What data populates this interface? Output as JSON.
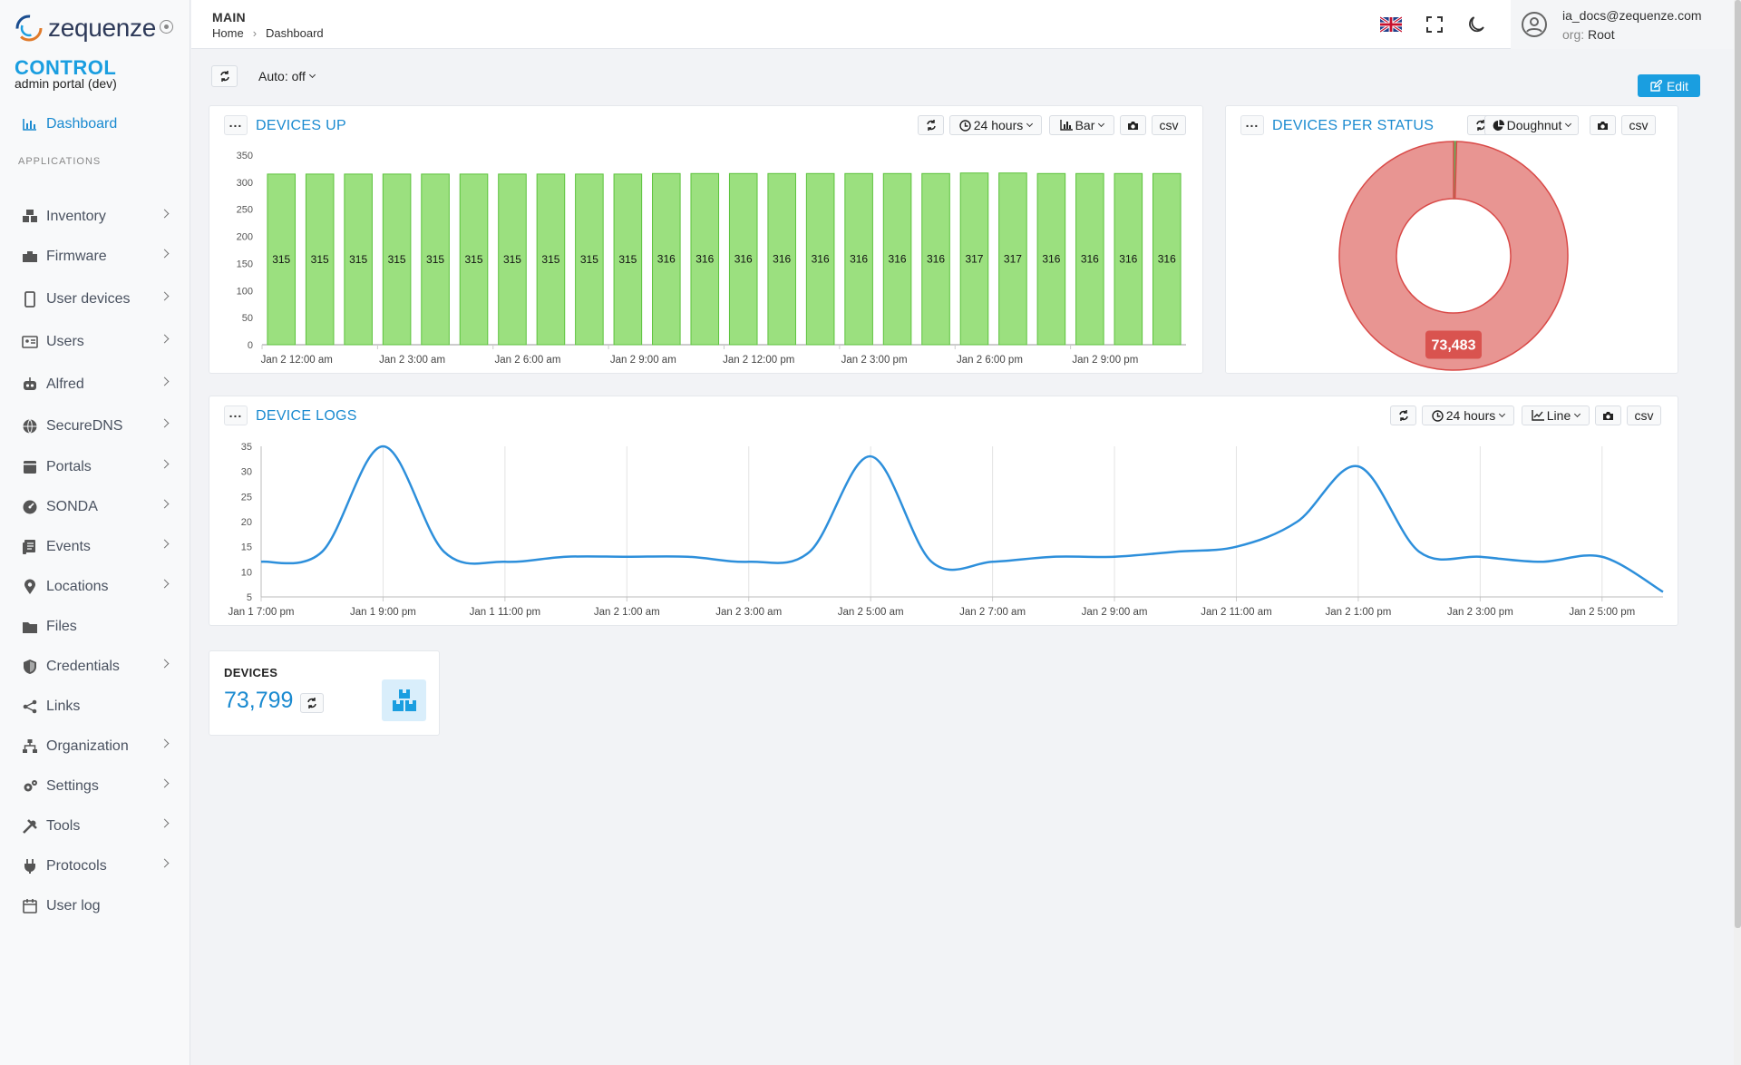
{
  "app": {
    "logo_text": "zequenze",
    "brand_title": "CONTROL",
    "brand_subtitle": "admin portal (dev)"
  },
  "sidebar": {
    "dashboard": "Dashboard",
    "section_label": "APPLICATIONS",
    "items": [
      {
        "label": "Inventory",
        "icon": "boxes-icon",
        "chevron": true
      },
      {
        "label": "Firmware",
        "icon": "toolbox-icon",
        "chevron": true
      },
      {
        "label": "User devices",
        "icon": "mobile-icon",
        "chevron": true
      },
      {
        "label": "Users",
        "icon": "id-card-icon",
        "chevron": true
      },
      {
        "label": "Alfred",
        "icon": "robot-icon",
        "chevron": true
      },
      {
        "label": "SecureDNS",
        "icon": "globe-icon",
        "chevron": true
      },
      {
        "label": "Portals",
        "icon": "portal-icon",
        "chevron": true
      },
      {
        "label": "SONDA",
        "icon": "gauge-icon",
        "chevron": true
      },
      {
        "label": "Events",
        "icon": "events-icon",
        "chevron": true
      },
      {
        "label": "Locations",
        "icon": "map-pin-icon",
        "chevron": true
      },
      {
        "label": "Files",
        "icon": "folder-icon",
        "chevron": false
      },
      {
        "label": "Credentials",
        "icon": "shield-icon",
        "chevron": true
      },
      {
        "label": "Links",
        "icon": "share-icon",
        "chevron": false
      },
      {
        "label": "Organization",
        "icon": "sitemap-icon",
        "chevron": true
      },
      {
        "label": "Settings",
        "icon": "gears-icon",
        "chevron": true
      },
      {
        "label": "Tools",
        "icon": "tools-icon",
        "chevron": true
      },
      {
        "label": "Protocols",
        "icon": "plug-icon",
        "chevron": true
      },
      {
        "label": "User log",
        "icon": "calendar-icon",
        "chevron": false
      }
    ]
  },
  "header": {
    "section": "MAIN",
    "breadcrumb": [
      "Home",
      "Dashboard"
    ],
    "user_email": "ia_docs@zequenze.com",
    "org_key": "org:",
    "org_value": "Root"
  },
  "toolbar": {
    "auto_refresh": "Auto: off",
    "edit": "Edit"
  },
  "devices_up": {
    "title": "DEVICES UP",
    "period": "24 hours",
    "chart_type": "Bar",
    "csv": "csv"
  },
  "devices_per_status": {
    "title": "DEVICES PER STATUS",
    "chart_type": "Doughnut",
    "csv": "csv"
  },
  "device_logs": {
    "title": "DEVICE LOGS",
    "period": "24 hours",
    "chart_type": "Line",
    "csv": "csv"
  },
  "kpi": {
    "label": "DEVICES",
    "value": "73,799"
  },
  "colors": {
    "accent": "#1a9ee0",
    "bar_fill": "#9be07f",
    "bar_stroke": "#5cc23c",
    "doughnut_main": "#e89592",
    "doughnut_stroke": "#d94a48",
    "doughnut_label_bg": "#d9534f",
    "doughnut_minor": "#5cb85c",
    "line": "#2d8fdb"
  },
  "chart_data": [
    {
      "type": "bar",
      "title": "DEVICES UP",
      "values": [
        315,
        315,
        315,
        315,
        315,
        315,
        315,
        315,
        315,
        315,
        316,
        316,
        316,
        316,
        316,
        316,
        316,
        316,
        317,
        317,
        316,
        316,
        316,
        316
      ],
      "data_labels": [
        "315",
        "315",
        "315",
        "315",
        "315",
        "315",
        "315",
        "315",
        "315",
        "315",
        "316",
        "316",
        "316",
        "316",
        "316",
        "316",
        "316",
        "316",
        "317",
        "317",
        "316",
        "316",
        "316",
        "316"
      ],
      "x_tick_labels": [
        "Jan 2 12:00 am",
        "Jan 2 3:00 am",
        "Jan 2 6:00 am",
        "Jan 2 9:00 am",
        "Jan 2 12:00 pm",
        "Jan 2 3:00 pm",
        "Jan 2 6:00 pm",
        "Jan 2 9:00 pm"
      ],
      "y_ticks": [
        0,
        50,
        100,
        150,
        200,
        250,
        300,
        350
      ],
      "ylim": [
        0,
        350
      ],
      "grid": false
    },
    {
      "type": "pie",
      "title": "DEVICES PER STATUS",
      "donut": true,
      "slices": [
        {
          "value": 73483,
          "label": "73,483"
        },
        {
          "value": 316
        }
      ]
    },
    {
      "type": "line",
      "title": "DEVICE LOGS",
      "x": [
        "Jan 1 7:00 pm",
        "Jan 1 8:00 pm",
        "Jan 1 9:00 pm",
        "Jan 1 10:00 pm",
        "Jan 1 11:00 pm",
        "Jan 2 12:00 am",
        "Jan 2 1:00 am",
        "Jan 2 2:00 am",
        "Jan 2 3:00 am",
        "Jan 2 4:00 am",
        "Jan 2 5:00 am",
        "Jan 2 6:00 am",
        "Jan 2 7:00 am",
        "Jan 2 8:00 am",
        "Jan 2 9:00 am",
        "Jan 2 10:00 am",
        "Jan 2 11:00 am",
        "Jan 2 12:00 pm",
        "Jan 2 1:00 pm",
        "Jan 2 2:00 pm",
        "Jan 2 3:00 pm",
        "Jan 2 4:00 pm",
        "Jan 2 5:00 pm",
        "Jan 2 6:00 pm"
      ],
      "values": [
        12,
        14,
        35,
        14,
        12,
        13,
        13,
        13,
        12,
        14,
        33,
        12,
        12,
        13,
        13,
        14,
        15,
        20,
        31,
        14,
        13,
        12,
        13,
        6
      ],
      "x_tick_labels": [
        "Jan 1 7:00 pm",
        "Jan 1 9:00 pm",
        "Jan 1 11:00 pm",
        "Jan 2 1:00 am",
        "Jan 2 3:00 am",
        "Jan 2 5:00 am",
        "Jan 2 7:00 am",
        "Jan 2 9:00 am",
        "Jan 2 11:00 am",
        "Jan 2 1:00 pm",
        "Jan 2 3:00 pm",
        "Jan 2 5:00 pm"
      ],
      "y_ticks": [
        5,
        10,
        15,
        20,
        25,
        30,
        35
      ],
      "ylim": [
        5,
        35
      ],
      "grid": "vertical"
    }
  ]
}
